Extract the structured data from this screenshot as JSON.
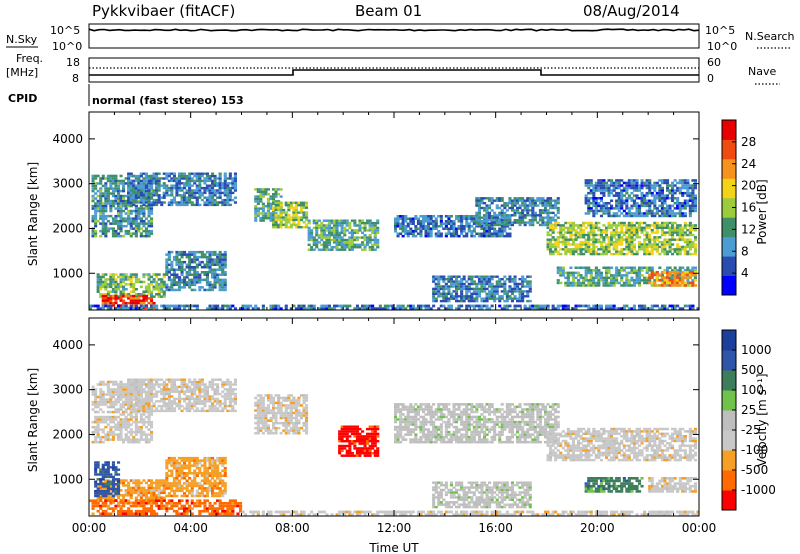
{
  "header": {
    "title": "Pykkvibaer (fitACF)",
    "beam": "Beam 01",
    "date": "08/Aug/2014"
  },
  "panels": {
    "nsky": {
      "left_label": "N.Sky",
      "right_label": "N.Search",
      "left_ticks": [
        "10^5",
        "10^0"
      ],
      "right_ticks": [
        "10^5",
        "10^0"
      ]
    },
    "freq": {
      "left_label_1": "Freq.",
      "left_label_2": "[MHz]",
      "right_label": "Nave",
      "left_ticks": [
        "18",
        "8"
      ],
      "right_ticks": [
        "60",
        "0"
      ]
    },
    "cpid": {
      "label": "CPID",
      "text": "normal (fast stereo) 153"
    }
  },
  "colors": {
    "power": [
      "#0000ff",
      "#2a4bb0",
      "#4a9cd2",
      "#3f8f68",
      "#9ccc3b",
      "#f2d318",
      "#f7921e",
      "#f04c12",
      "#e60000"
    ],
    "velocity": [
      "#ff0000",
      "#ff6a00",
      "#f5a025",
      "#c8c8c8",
      "#bebebe",
      "#6fc24a",
      "#3e7d5c",
      "#2f55a8",
      "#1c3f9b"
    ]
  },
  "chart_data": [
    {
      "type": "heatmap",
      "quantity": "power",
      "ylabel": "Slant Range [km]",
      "yticks": [
        "1000",
        "2000",
        "3000",
        "4000"
      ],
      "ylim": [
        180,
        4600
      ],
      "xlim": [
        0,
        24
      ],
      "colorbar": {
        "label": "Power [dB]",
        "ticks": [
          "4",
          "8",
          "12",
          "16",
          "20",
          "24",
          "28"
        ],
        "range": [
          0,
          30
        ]
      },
      "regions": [
        {
          "t0": 0.1,
          "t1": 2.5,
          "r0": 1800,
          "r1": 3200,
          "v": 9
        },
        {
          "t0": 0.3,
          "t1": 3.0,
          "r0": 450,
          "r1": 1000,
          "v": 13
        },
        {
          "t0": 0.5,
          "t1": 2.6,
          "r0": 200,
          "r1": 520,
          "v": 27
        },
        {
          "t0": 1.5,
          "t1": 5.8,
          "r0": 2500,
          "r1": 3250,
          "v": 7
        },
        {
          "t0": 3.0,
          "t1": 5.4,
          "r0": 600,
          "r1": 1500,
          "v": 8
        },
        {
          "t0": 6.5,
          "t1": 7.6,
          "r0": 2150,
          "r1": 2900,
          "v": 11
        },
        {
          "t0": 7.2,
          "t1": 8.6,
          "r0": 2000,
          "r1": 2600,
          "v": 15
        },
        {
          "t0": 8.6,
          "t1": 11.4,
          "r0": 1500,
          "r1": 2200,
          "v": 11
        },
        {
          "t0": 12.0,
          "t1": 16.6,
          "r0": 1800,
          "r1": 2300,
          "v": 6
        },
        {
          "t0": 15.2,
          "t1": 18.5,
          "r0": 2050,
          "r1": 2700,
          "v": 8
        },
        {
          "t0": 13.5,
          "t1": 17.4,
          "r0": 350,
          "r1": 950,
          "v": 7
        },
        {
          "t0": 18.0,
          "t1": 23.9,
          "r0": 1400,
          "r1": 2150,
          "v": 15
        },
        {
          "t0": 18.4,
          "t1": 23.9,
          "r0": 700,
          "r1": 1150,
          "v": 11
        },
        {
          "t0": 19.5,
          "t1": 23.9,
          "r0": 2250,
          "r1": 3100,
          "v": 6
        },
        {
          "t0": 22.0,
          "t1": 23.9,
          "r0": 700,
          "r1": 1050,
          "v": 22
        },
        {
          "t0": 0.0,
          "t1": 24.0,
          "r0": 180,
          "r1": 300,
          "v": 6
        }
      ]
    },
    {
      "type": "heatmap",
      "quantity": "velocity",
      "ylabel": "Slant Range [km]",
      "yticks": [
        "1000",
        "2000",
        "3000",
        "4000"
      ],
      "ylim": [
        180,
        4600
      ],
      "xlim": [
        0,
        24
      ],
      "xticks": [
        "00:00",
        "04:00",
        "08:00",
        "12:00",
        "16:00",
        "20:00",
        "00:00"
      ],
      "xlabel": "Time UT",
      "colorbar": {
        "label": "Velocity [m s⁻¹]",
        "ticks": [
          "-1000",
          "-500",
          "-100",
          "-25",
          "25",
          "100",
          "500",
          "1000"
        ]
      },
      "regions": [
        {
          "t0": 0.1,
          "t1": 2.5,
          "r0": 1800,
          "r1": 3200,
          "c": 3
        },
        {
          "t0": 0.3,
          "t1": 3.0,
          "r0": 450,
          "r1": 1000,
          "c": 2
        },
        {
          "t0": 0.2,
          "t1": 1.2,
          "r0": 600,
          "r1": 1400,
          "c": 7
        },
        {
          "t0": 1.5,
          "t1": 5.8,
          "r0": 2500,
          "r1": 3250,
          "c": 3
        },
        {
          "t0": 3.0,
          "t1": 5.4,
          "r0": 600,
          "r1": 1500,
          "c": 2
        },
        {
          "t0": 6.5,
          "t1": 8.6,
          "r0": 2000,
          "r1": 2900,
          "c": 3
        },
        {
          "t0": 9.8,
          "t1": 11.4,
          "r0": 1500,
          "r1": 2200,
          "c": 0
        },
        {
          "t0": 12.0,
          "t1": 18.5,
          "r0": 1800,
          "r1": 2700,
          "c": 4
        },
        {
          "t0": 13.5,
          "t1": 17.4,
          "r0": 350,
          "r1": 950,
          "c": 4
        },
        {
          "t0": 18.0,
          "t1": 23.9,
          "r0": 1400,
          "r1": 2150,
          "c": 3
        },
        {
          "t0": 19.5,
          "t1": 21.8,
          "r0": 700,
          "r1": 1050,
          "c": 6
        },
        {
          "t0": 22.0,
          "t1": 23.9,
          "r0": 700,
          "r1": 1050,
          "c": 3
        },
        {
          "t0": 0.0,
          "t1": 6.0,
          "r0": 200,
          "r1": 550,
          "c": 1
        },
        {
          "t0": 6.0,
          "t1": 24.0,
          "r0": 180,
          "r1": 300,
          "c": 3
        }
      ]
    }
  ]
}
